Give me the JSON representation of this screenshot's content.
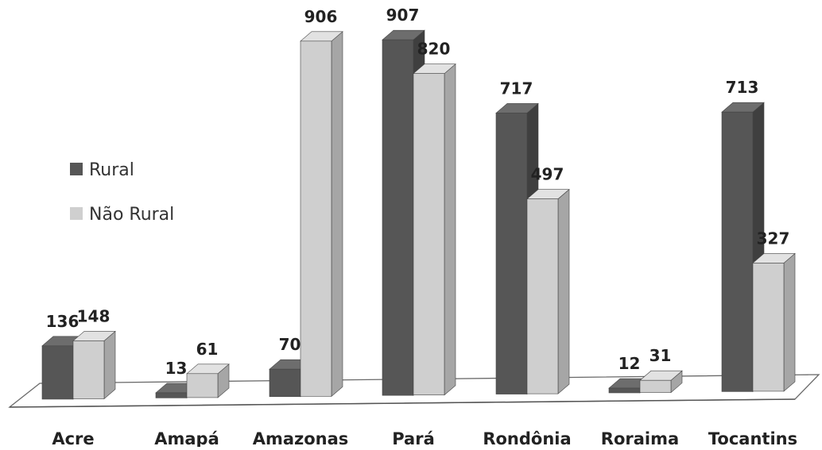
{
  "chart_data": {
    "type": "bar",
    "categories": [
      "Acre",
      "Amapá",
      "Amazonas",
      "Pará",
      "Rondônia",
      "Roraima",
      "Tocantins"
    ],
    "series": [
      {
        "name": "Rural",
        "values": [
          136,
          13,
          70,
          907,
          717,
          12,
          713
        ]
      },
      {
        "name": "Não Rural",
        "values": [
          148,
          61,
          906,
          820,
          497,
          31,
          327
        ]
      }
    ],
    "data_labels": {
      "Rural": [
        "136",
        "13",
        "70",
        "907",
        "717",
        "12",
        "713"
      ],
      "Não Rural": [
        "148",
        "61",
        "906",
        "820",
        "497",
        "31",
        "327"
      ]
    },
    "title": "",
    "xlabel": "",
    "ylabel": "",
    "ylim": [
      0,
      1000
    ],
    "style": "3d-clustered-column",
    "grid": false,
    "legend_position": "left",
    "colors": {
      "rural_front": "#565656",
      "rural_side": "#3f3f3f",
      "rural_top": "#6d6d6d",
      "nao_rural_front": "#cfcfcf",
      "nao_rural_side": "#a6a6a6",
      "nao_rural_top": "#e2e2e2"
    }
  }
}
